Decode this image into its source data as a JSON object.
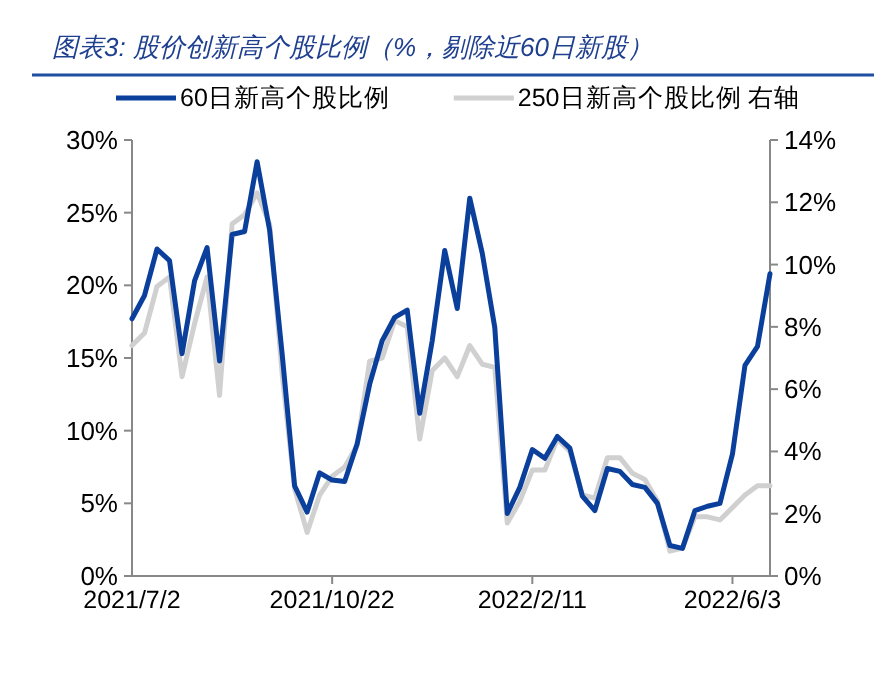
{
  "chart_data": {
    "type": "line",
    "title": "图表3:  股价创新高个股比例（%，剔除近60日新股）",
    "categories": [
      "2021/7/2",
      null,
      null,
      null,
      null,
      null,
      null,
      null,
      null,
      null,
      null,
      null,
      null,
      null,
      null,
      null,
      "2021/10/22",
      null,
      null,
      null,
      null,
      null,
      null,
      null,
      null,
      null,
      null,
      null,
      null,
      null,
      null,
      null,
      "2022/2/11",
      null,
      null,
      null,
      null,
      null,
      null,
      null,
      null,
      null,
      null,
      null,
      null,
      null,
      null,
      null,
      "2022/6/3",
      null,
      null,
      null
    ],
    "series": [
      {
        "name": "60日新高个股比例",
        "color": "#0b3f9c",
        "values": [
          17.7,
          19.3,
          22.5,
          21.7,
          15.3,
          20.3,
          22.6,
          14.8,
          23.5,
          23.7,
          28.5,
          23.8,
          15.3,
          6.2,
          4.4,
          7.1,
          6.6,
          6.5,
          9.1,
          13.2,
          16.2,
          17.8,
          18.3,
          11.2,
          16.2,
          22.4,
          18.4,
          26.0,
          22.2,
          17.1,
          4.3,
          6.1,
          8.7,
          8.1,
          9.6,
          8.8,
          5.5,
          4.5,
          7.4,
          7.2,
          6.3,
          6.1,
          5.0,
          2.1,
          1.9,
          4.5,
          4.8,
          5.0,
          8.4,
          14.5,
          15.8,
          20.8
        ]
      },
      {
        "name": "250日新高个股比例 右轴",
        "color": "#d0d0d0",
        "axis": "y2",
        "values": [
          7.4,
          7.8,
          9.3,
          9.6,
          6.4,
          8.1,
          9.6,
          5.8,
          11.3,
          11.6,
          12.3,
          11.3,
          6.5,
          2.8,
          1.4,
          2.6,
          3.2,
          3.5,
          4.2,
          6.9,
          7.0,
          8.2,
          8.0,
          4.4,
          6.6,
          7.0,
          6.4,
          7.4,
          6.8,
          6.7,
          1.7,
          2.4,
          3.4,
          3.4,
          4.4,
          4.0,
          2.6,
          2.5,
          3.8,
          3.8,
          3.3,
          3.1,
          2.4,
          0.8,
          0.9,
          1.9,
          1.9,
          1.8,
          2.2,
          2.6,
          2.9,
          2.9
        ]
      }
    ],
    "ylim": [
      0,
      30
    ],
    "yticks": [
      {
        "value": 0,
        "label": "0%"
      },
      {
        "value": 5,
        "label": "5%"
      },
      {
        "value": 10,
        "label": "10%"
      },
      {
        "value": 15,
        "label": "15%"
      },
      {
        "value": 20,
        "label": "20%"
      },
      {
        "value": 25,
        "label": "25%"
      },
      {
        "value": 30,
        "label": "30%"
      }
    ],
    "y2lim": [
      0,
      14
    ],
    "y2ticks": [
      {
        "value": 0,
        "label": "0%"
      },
      {
        "value": 2,
        "label": "2%"
      },
      {
        "value": 4,
        "label": "4%"
      },
      {
        "value": 6,
        "label": "6%"
      },
      {
        "value": 8,
        "label": "8%"
      },
      {
        "value": 10,
        "label": "10%"
      },
      {
        "value": 12,
        "label": "12%"
      },
      {
        "value": 14,
        "label": "14%"
      }
    ],
    "legend": "top"
  }
}
